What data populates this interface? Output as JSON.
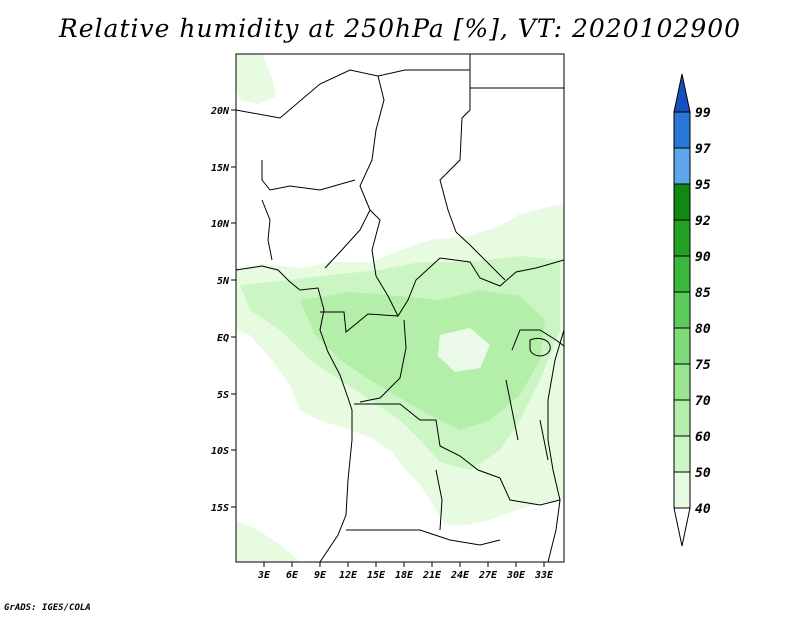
{
  "title": "Relative humidity at 250hPa [%], VT: 2020102900",
  "credit": "GrADS: IGES/COLA",
  "lat_labels": [
    "20N",
    "15N",
    "10N",
    "5N",
    "EQ",
    "5S",
    "10S",
    "15S"
  ],
  "lon_labels": [
    "3E",
    "6E",
    "9E",
    "12E",
    "15E",
    "18E",
    "21E",
    "24E",
    "27E",
    "30E",
    "33E"
  ],
  "colorbar": {
    "levels": [
      "40",
      "50",
      "60",
      "70",
      "75",
      "80",
      "85",
      "90",
      "92",
      "95",
      "97",
      "99"
    ],
    "colors": [
      "#ffffff",
      "#e6fbe0",
      "#ccf5c4",
      "#b3efa8",
      "#99e58f",
      "#7fdb78",
      "#5ccb5c",
      "#3bb83b",
      "#22a122",
      "#118811",
      "#5ea6ea",
      "#2b77d8",
      "#1650c0"
    ]
  }
}
